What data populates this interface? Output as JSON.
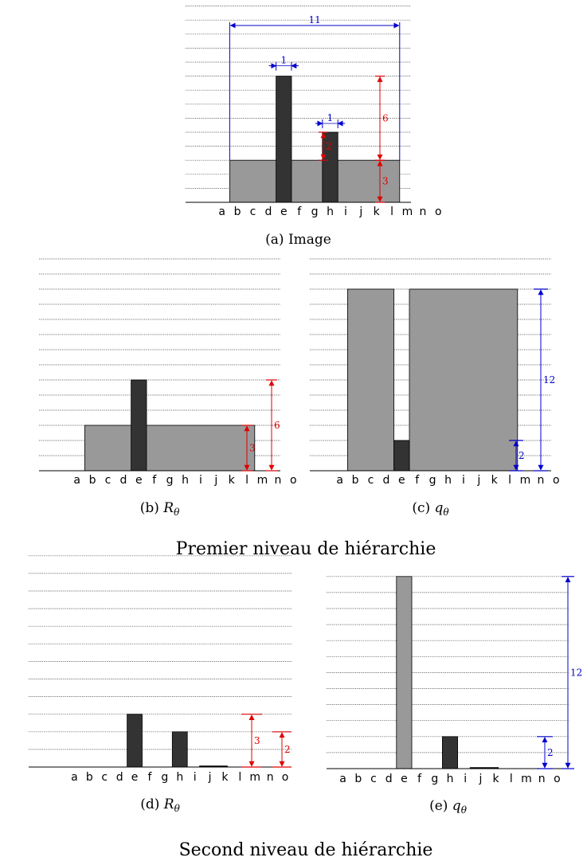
{
  "colors": {
    "dark_bar": "#333333",
    "light_bar": "#999999",
    "red_dim": "#e00000",
    "blue_dim": "#0000cc"
  },
  "letters": [
    "a",
    "b",
    "c",
    "d",
    "e",
    "f",
    "g",
    "h",
    "i",
    "j",
    "k",
    "l",
    "m",
    "n",
    "o"
  ],
  "chart_data": [
    {
      "type": "bar",
      "id": "a",
      "caption_label": "(a)",
      "caption_text": "Image",
      "base_rect": {
        "from": "b",
        "to": "l",
        "height": 3
      },
      "bars": [
        {
          "col": "e",
          "height": 6
        },
        {
          "col": "h",
          "height": 2
        }
      ],
      "dims": [
        {
          "label": "11",
          "color": "blue",
          "orientation": "h"
        },
        {
          "label": "1",
          "color": "blue",
          "orientation": "h"
        },
        {
          "label": "1",
          "color": "blue",
          "orientation": "h"
        },
        {
          "label": "6",
          "color": "red",
          "orientation": "v"
        },
        {
          "label": "2",
          "color": "red",
          "orientation": "v"
        },
        {
          "label": "3",
          "color": "red",
          "orientation": "v"
        }
      ]
    },
    {
      "type": "bar",
      "id": "b",
      "caption_label": "(b)",
      "caption_math": "R",
      "caption_sub": "θ",
      "base_rect": {
        "from": "b",
        "to": "l",
        "height": 3
      },
      "bars": [
        {
          "col": "e",
          "height": 6
        }
      ],
      "dims": [
        {
          "label": "3",
          "color": "red"
        },
        {
          "label": "6",
          "color": "red"
        }
      ]
    },
    {
      "type": "bar",
      "id": "c",
      "caption_label": "(c)",
      "caption_math": "q",
      "caption_sub": "θ",
      "rects": [
        {
          "from": "b",
          "to": "d",
          "height": 12
        },
        {
          "from": "f",
          "to": "l",
          "height": 12
        }
      ],
      "bars": [
        {
          "col": "e",
          "height": 2
        }
      ],
      "dims": [
        {
          "label": "2",
          "color": "blue"
        },
        {
          "label": "12",
          "color": "blue"
        }
      ]
    },
    {
      "type": "bar",
      "id": "d",
      "caption_label": "(d)",
      "caption_math": "R",
      "caption_sub": "θ",
      "bars": [
        {
          "col": "e",
          "height": 3
        },
        {
          "col": "h",
          "height": 2
        }
      ],
      "dims": [
        {
          "label": "3",
          "color": "red"
        },
        {
          "label": "2",
          "color": "red"
        }
      ]
    },
    {
      "type": "bar",
      "id": "e",
      "caption_label": "(e)",
      "caption_math": "q",
      "caption_sub": "θ",
      "light_bars": [
        {
          "col": "e",
          "height": 12
        }
      ],
      "bars": [
        {
          "col": "h",
          "height": 2
        }
      ],
      "dims": [
        {
          "label": "2",
          "color": "blue"
        },
        {
          "label": "12",
          "color": "blue"
        }
      ]
    }
  ],
  "sections": {
    "first": "Premier niveau de hiérarchie",
    "second": "Second niveau de hiérarchie"
  }
}
